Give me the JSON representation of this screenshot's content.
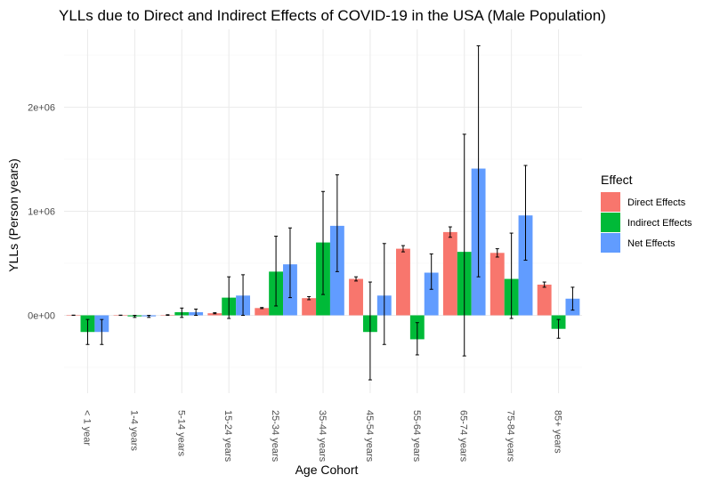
{
  "chart_data": {
    "type": "bar",
    "title": "YLLs due to Direct and Indirect Effects of COVID-19 in the USA (Male Population)",
    "xlabel": "Age Cohort",
    "ylabel": "YLLs (Person years)",
    "categories": [
      "< 1 year",
      "1-4 years",
      "5-14 years",
      "15-24 years",
      "25-34 years",
      "35-44 years",
      "45-54 years",
      "55-64 years",
      "65-74 years",
      "75-84 years",
      "85+ years"
    ],
    "yticks": [
      {
        "value": 0,
        "label": "0e+00"
      },
      {
        "value": 1000000,
        "label": "1e+06"
      },
      {
        "value": 2000000,
        "label": "2e+06"
      }
    ],
    "ylim": [
      -800000,
      2550000
    ],
    "grid": true,
    "legend": {
      "title": "Effect",
      "position": "right"
    },
    "series": [
      {
        "name": "Direct Effects",
        "color": "#F8766D",
        "values": [
          1000,
          1000,
          3000,
          20000,
          70000,
          165000,
          350000,
          640000,
          800000,
          600000,
          295000
        ],
        "err_low": [
          0,
          0,
          0,
          15000,
          65000,
          150000,
          330000,
          610000,
          750000,
          560000,
          270000
        ],
        "err_high": [
          2000,
          2000,
          6000,
          25000,
          75000,
          180000,
          370000,
          670000,
          850000,
          640000,
          320000
        ]
      },
      {
        "name": "Indirect Effects",
        "color": "#00BA38",
        "values": [
          -160000,
          -10000,
          30000,
          170000,
          420000,
          700000,
          -160000,
          -230000,
          610000,
          350000,
          -130000
        ],
        "err_low": [
          -280000,
          -20000,
          -20000,
          -30000,
          90000,
          200000,
          -620000,
          -380000,
          -390000,
          -30000,
          -220000
        ],
        "err_high": [
          -40000,
          0,
          70000,
          370000,
          760000,
          1190000,
          320000,
          -70000,
          1740000,
          790000,
          -40000
        ]
      },
      {
        "name": "Net Effects",
        "color": "#619CFF",
        "values": [
          -160000,
          -10000,
          30000,
          190000,
          490000,
          860000,
          190000,
          410000,
          1410000,
          960000,
          160000
        ],
        "err_low": [
          -280000,
          -20000,
          0,
          0,
          170000,
          420000,
          -280000,
          250000,
          370000,
          530000,
          50000
        ],
        "err_high": [
          -40000,
          0,
          60000,
          390000,
          840000,
          1350000,
          690000,
          590000,
          2590000,
          1440000,
          270000
        ]
      }
    ]
  }
}
